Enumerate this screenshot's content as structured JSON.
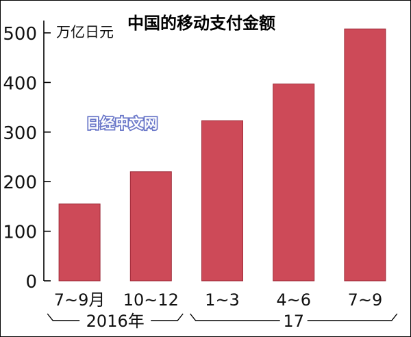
{
  "chart_data": {
    "type": "bar",
    "title": "中国的移动支付金额",
    "unit": "万亿日元",
    "categories": [
      "7~9月",
      "10~12",
      "1~3",
      "4~6",
      "7~9"
    ],
    "values": [
      155,
      220,
      323,
      397,
      508
    ],
    "year_groups": [
      {
        "label": "2016年",
        "from": 0,
        "to": 1
      },
      {
        "label": "17",
        "from": 2,
        "to": 4
      }
    ],
    "yticks": [
      0,
      100,
      200,
      300,
      400,
      500
    ],
    "ylim": [
      0,
      540
    ],
    "bar_color": "#cd4a58",
    "grid": false,
    "legend": "none"
  },
  "watermark": "日经中文网"
}
